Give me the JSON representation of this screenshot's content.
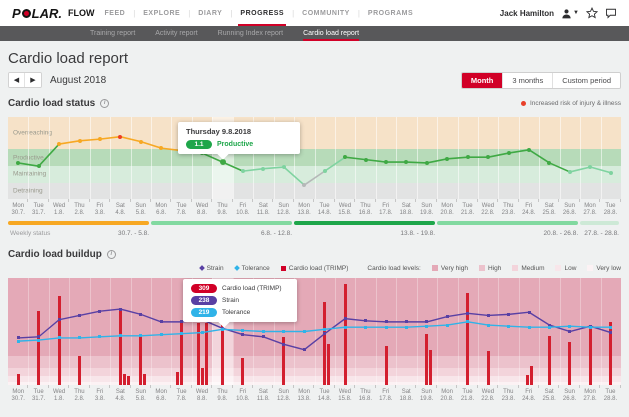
{
  "palette": {
    "accent": "#d10027",
    "green": "#3fa944",
    "lightgreen": "#7fd3a0",
    "orange": "#f7a823",
    "red": "#ee3d23",
    "gray": "#b5b8b8",
    "strain": "#5940a4",
    "tolerance": "#30b3e8",
    "trimp": "#d31f2f"
  },
  "topnav": {
    "logo_p": "P",
    "logo_rest": "LAR.",
    "flow": "FLOW",
    "items": [
      "FEED",
      "EXPLORE",
      "DIARY",
      "PROGRESS",
      "COMMUNITY",
      "PROGRAMS"
    ],
    "active": "PROGRESS",
    "user_name": "Jack Hamilton"
  },
  "subnav": {
    "items": [
      "Training report",
      "Activity report",
      "Running Index report",
      "Cardio load report"
    ],
    "active": "Cardio load report"
  },
  "page": {
    "title": "Cardio load report",
    "period": "August 2018",
    "period_buttons": [
      "Month",
      "3 months",
      "Custom period"
    ],
    "active_period": "Month"
  },
  "status_section": {
    "title": "Cardio load status",
    "risk_legend": "Increased risk of injury & illness"
  },
  "buildup_section": {
    "title": "Cardio load buildup"
  },
  "chart_data": [
    {
      "type": "line",
      "title": "Cardio load status",
      "note": "y axis is qualitative training-status zones; selected day 9.8. shows ratio 1.1",
      "zones": [
        {
          "label": "Overreaching",
          "color": "#f6e2c8",
          "height_pct": 39
        },
        {
          "label": "Productive",
          "color": "#b7dbb9",
          "height_pct": 21
        },
        {
          "label": "Maintaining",
          "color": "#d7ecdc",
          "height_pct": 20
        },
        {
          "label": "Detraining",
          "color": "#e2e3e3",
          "height_pct": 20
        }
      ],
      "days": [
        [
          "Mon",
          "30.7."
        ],
        [
          "Tue",
          "31.7."
        ],
        [
          "Wed",
          "1.8."
        ],
        [
          "Thu",
          "2.8."
        ],
        [
          "Fri",
          "3.8."
        ],
        [
          "Sat",
          "4.8."
        ],
        [
          "Sun",
          "5.8."
        ],
        [
          "Mon",
          "6.8."
        ],
        [
          "Tue",
          "7.8."
        ],
        [
          "Wed",
          "8.8."
        ],
        [
          "Thu",
          "9.8."
        ],
        [
          "Fri",
          "10.8."
        ],
        [
          "Sat",
          "11.8."
        ],
        [
          "Sun",
          "12.8."
        ],
        [
          "Mon",
          "13.8."
        ],
        [
          "Tue",
          "14.8."
        ],
        [
          "Wed",
          "15.8."
        ],
        [
          "Thu",
          "16.8."
        ],
        [
          "Fri",
          "17.8."
        ],
        [
          "Sat",
          "18.8."
        ],
        [
          "Sun",
          "19.8."
        ],
        [
          "Mon",
          "20.8."
        ],
        [
          "Tue",
          "21.8."
        ],
        [
          "Wed",
          "22.8."
        ],
        [
          "Thu",
          "23.8."
        ],
        [
          "Fri",
          "24.8."
        ],
        [
          "Sat",
          "25.8."
        ],
        [
          "Sun",
          "26.8."
        ],
        [
          "Mon",
          "27.8."
        ],
        [
          "Tue",
          "28.8."
        ]
      ],
      "points": [
        {
          "y_pct": 56,
          "zone": "Productive",
          "color": "green"
        },
        {
          "y_pct": 60,
          "zone": "Productive",
          "color": "green"
        },
        {
          "y_pct": 33,
          "zone": "Overreaching",
          "color": "orange"
        },
        {
          "y_pct": 29,
          "zone": "Overreaching",
          "color": "orange"
        },
        {
          "y_pct": 27,
          "zone": "Overreaching",
          "color": "orange"
        },
        {
          "y_pct": 24,
          "zone": "Overreaching",
          "color": "red"
        },
        {
          "y_pct": 30,
          "zone": "Overreaching",
          "color": "orange"
        },
        {
          "y_pct": 38,
          "zone": "Overreaching",
          "color": "orange"
        },
        {
          "y_pct": 41,
          "zone": "Productive",
          "color": "green"
        },
        {
          "y_pct": 44,
          "zone": "Productive",
          "color": "green"
        },
        {
          "y_pct": 55,
          "zone": "Productive",
          "color": "green"
        },
        {
          "y_pct": 66,
          "zone": "Maintaining",
          "color": "lightgreen"
        },
        {
          "y_pct": 63,
          "zone": "Maintaining",
          "color": "lightgreen"
        },
        {
          "y_pct": 61,
          "zone": "Maintaining",
          "color": "lightgreen"
        },
        {
          "y_pct": 83,
          "zone": "Detraining",
          "color": "gray"
        },
        {
          "y_pct": 66,
          "zone": "Maintaining",
          "color": "lightgreen"
        },
        {
          "y_pct": 49,
          "zone": "Productive",
          "color": "green"
        },
        {
          "y_pct": 52,
          "zone": "Productive",
          "color": "green"
        },
        {
          "y_pct": 55,
          "zone": "Productive",
          "color": "green"
        },
        {
          "y_pct": 55,
          "zone": "Productive",
          "color": "green"
        },
        {
          "y_pct": 56,
          "zone": "Productive",
          "color": "green"
        },
        {
          "y_pct": 51,
          "zone": "Productive",
          "color": "green"
        },
        {
          "y_pct": 49,
          "zone": "Productive",
          "color": "green"
        },
        {
          "y_pct": 49,
          "zone": "Productive",
          "color": "green"
        },
        {
          "y_pct": 44,
          "zone": "Productive",
          "color": "green"
        },
        {
          "y_pct": 40,
          "zone": "Productive",
          "color": "green"
        },
        {
          "y_pct": 56,
          "zone": "Productive",
          "color": "green"
        },
        {
          "y_pct": 67,
          "zone": "Maintaining",
          "color": "lightgreen"
        },
        {
          "y_pct": 61,
          "zone": "Maintaining",
          "color": "lightgreen"
        },
        {
          "y_pct": 68,
          "zone": "Maintaining",
          "color": "lightgreen"
        }
      ],
      "selected_index": 10,
      "tooltip": {
        "title": "Thursday 9.8.2018",
        "value": "1.1",
        "status": "Productive",
        "status_color": "#1ea64a"
      },
      "weekly_status": {
        "caption": "Weekly status",
        "segments": [
          {
            "range": "30.7. - 5.8.",
            "days": 7,
            "color": "#f7a823"
          },
          {
            "range": "6.8. - 12.8.",
            "days": 7,
            "color": "#82d9a0"
          },
          {
            "range": "13.8. - 19.8.",
            "days": 7,
            "color": "#1ea64a"
          },
          {
            "range": "20.8. - 26.8.",
            "days": 7,
            "color": "#82d9a0"
          },
          {
            "range": "27.8. - 28.8.",
            "days": 2,
            "color": "#cde9d6"
          }
        ]
      }
    },
    {
      "type": "bar+line",
      "title": "Cardio load buildup",
      "legend": [
        {
          "label": "Strain",
          "color": "#5940a4",
          "marker": "diamond"
        },
        {
          "label": "Tolerance",
          "color": "#30b3e8",
          "marker": "diamond"
        },
        {
          "label": "Cardio load (TRIMP)",
          "color": "#d10027",
          "marker": "square"
        }
      ],
      "levels_legend": {
        "caption": "Cardio load levels:",
        "levels": [
          {
            "label": "Very high",
            "color": "#e4a9b7"
          },
          {
            "label": "High",
            "color": "#ecc2cc"
          },
          {
            "label": "Medium",
            "color": "#f3d4db"
          },
          {
            "label": "Low",
            "color": "#f8e6ea"
          },
          {
            "label": "Very low",
            "color": "#fcf2f4"
          }
        ],
        "band_heights_pct": [
          73,
          11,
          8,
          5,
          3
        ]
      },
      "days": [
        [
          "Mon",
          "30.7."
        ],
        [
          "Tue",
          "31.7."
        ],
        [
          "Wed",
          "1.8."
        ],
        [
          "Thu",
          "2.8."
        ],
        [
          "Fri",
          "3.8."
        ],
        [
          "Sat",
          "4.8."
        ],
        [
          "Sun",
          "5.8."
        ],
        [
          "Mon",
          "6.8."
        ],
        [
          "Tue",
          "7.8."
        ],
        [
          "Wed",
          "8.8."
        ],
        [
          "Thu",
          "9.8."
        ],
        [
          "Fri",
          "10.8."
        ],
        [
          "Sat",
          "11.8."
        ],
        [
          "Sun",
          "12.8."
        ],
        [
          "Mon",
          "13.8."
        ],
        [
          "Tue",
          "14.8."
        ],
        [
          "Wed",
          "15.8."
        ],
        [
          "Thu",
          "16.8."
        ],
        [
          "Fri",
          "17.8."
        ],
        [
          "Sat",
          "18.8."
        ],
        [
          "Sun",
          "19.8."
        ],
        [
          "Mon",
          "20.8."
        ],
        [
          "Tue",
          "21.8."
        ],
        [
          "Wed",
          "22.8."
        ],
        [
          "Thu",
          "23.8."
        ],
        [
          "Fri",
          "24.8."
        ],
        [
          "Sat",
          "25.8."
        ],
        [
          "Sun",
          "26.8."
        ],
        [
          "Mon",
          "27.8."
        ],
        [
          "Tue",
          "28.8."
        ]
      ],
      "bars": [
        {
          "day": 0,
          "h_pct": 10,
          "off": 0
        },
        {
          "day": 1,
          "h_pct": 69,
          "off": 0
        },
        {
          "day": 2,
          "h_pct": 83,
          "off": 0
        },
        {
          "day": 3,
          "h_pct": 27,
          "off": 0
        },
        {
          "day": 5,
          "h_pct": 70,
          "off": 0
        },
        {
          "day": 5,
          "h_pct": 10,
          "off": 1
        },
        {
          "day": 5,
          "h_pct": 8,
          "off": 2
        },
        {
          "day": 6,
          "h_pct": 45,
          "off": 0
        },
        {
          "day": 6,
          "h_pct": 10,
          "off": 1
        },
        {
          "day": 8,
          "h_pct": 12,
          "off": -1
        },
        {
          "day": 8,
          "h_pct": 58,
          "off": 0
        },
        {
          "day": 9,
          "h_pct": 58,
          "off": -1
        },
        {
          "day": 9,
          "h_pct": 16,
          "off": 0
        },
        {
          "day": 9,
          "h_pct": 58,
          "off": 1
        },
        {
          "day": 10,
          "h_pct": 61,
          "off": 0
        },
        {
          "day": 11,
          "h_pct": 25,
          "off": 0
        },
        {
          "day": 13,
          "h_pct": 45,
          "off": 0
        },
        {
          "day": 15,
          "h_pct": 78,
          "off": 0
        },
        {
          "day": 15,
          "h_pct": 38,
          "off": 1
        },
        {
          "day": 16,
          "h_pct": 94,
          "off": 0
        },
        {
          "day": 18,
          "h_pct": 36,
          "off": 0
        },
        {
          "day": 20,
          "h_pct": 48,
          "off": 0
        },
        {
          "day": 20,
          "h_pct": 33,
          "off": 1
        },
        {
          "day": 22,
          "h_pct": 86,
          "off": 0
        },
        {
          "day": 23,
          "h_pct": 32,
          "off": 0
        },
        {
          "day": 25,
          "h_pct": 9,
          "off": -0.5
        },
        {
          "day": 25,
          "h_pct": 18,
          "off": 0.5
        },
        {
          "day": 26,
          "h_pct": 46,
          "off": 0
        },
        {
          "day": 27,
          "h_pct": 40,
          "off": 0
        },
        {
          "day": 28,
          "h_pct": 54,
          "off": 0
        },
        {
          "day": 29,
          "h_pct": 59,
          "off": 0
        }
      ],
      "strain_pct": [
        56,
        55,
        39,
        35,
        31,
        29,
        34,
        41,
        41,
        39,
        47,
        53,
        55,
        62,
        67,
        52,
        38,
        40,
        41,
        41,
        41,
        36,
        33,
        35,
        34,
        32,
        44,
        50,
        45,
        51
      ],
      "tolerance_pct": [
        59,
        58,
        56,
        56,
        55,
        54,
        54,
        53,
        52,
        51,
        48,
        49,
        50,
        50,
        50,
        48,
        46,
        46,
        46,
        46,
        45,
        44,
        41,
        44,
        45,
        46,
        46,
        45,
        46,
        46
      ],
      "selected_index": 10,
      "tooltip": {
        "rows": [
          {
            "value": "309",
            "label": "Cardio load (TRIMP)",
            "color": "#d10027"
          },
          {
            "value": "238",
            "label": "Strain",
            "color": "#5940a4"
          },
          {
            "value": "219",
            "label": "Tolerance",
            "color": "#30b3e8"
          }
        ]
      }
    }
  ]
}
